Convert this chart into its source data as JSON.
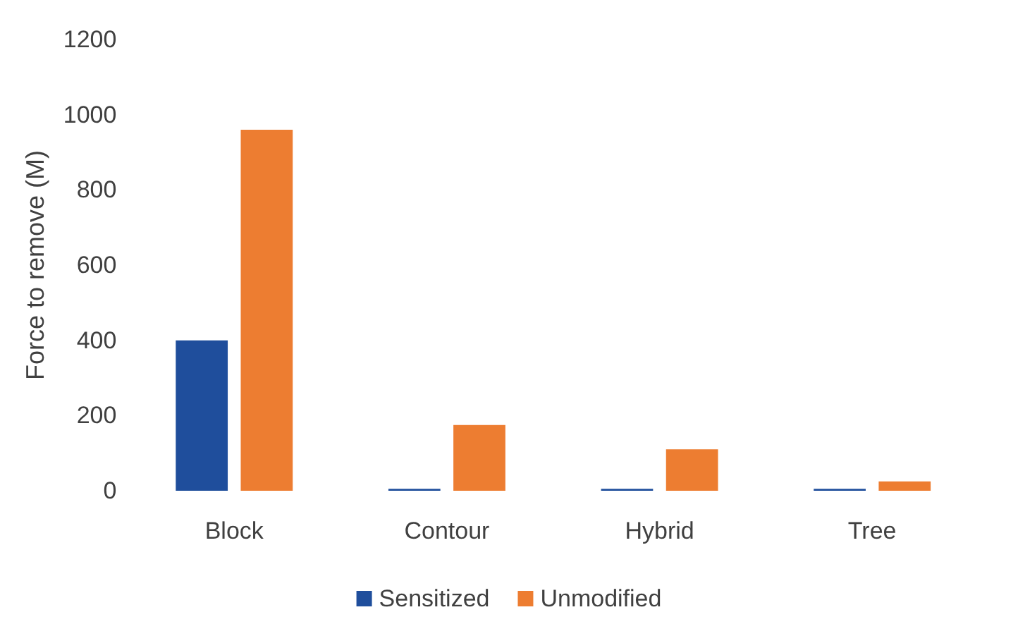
{
  "chart_data": {
    "type": "bar",
    "ylabel": "Force to remove (M)",
    "categories": [
      "Block",
      "Contour",
      "Hybrid",
      "Tree"
    ],
    "series": [
      {
        "name": "Sensitized",
        "color": "#1f4e9c",
        "values": [
          400,
          5,
          5,
          5
        ]
      },
      {
        "name": "Unmodified",
        "color": "#ed7d31",
        "values": [
          960,
          175,
          110,
          25
        ]
      }
    ],
    "ylim": [
      0,
      1200
    ],
    "yticks": [
      0,
      200,
      400,
      600,
      800,
      1000,
      1200
    ],
    "grid": false,
    "legend": "bottom"
  }
}
